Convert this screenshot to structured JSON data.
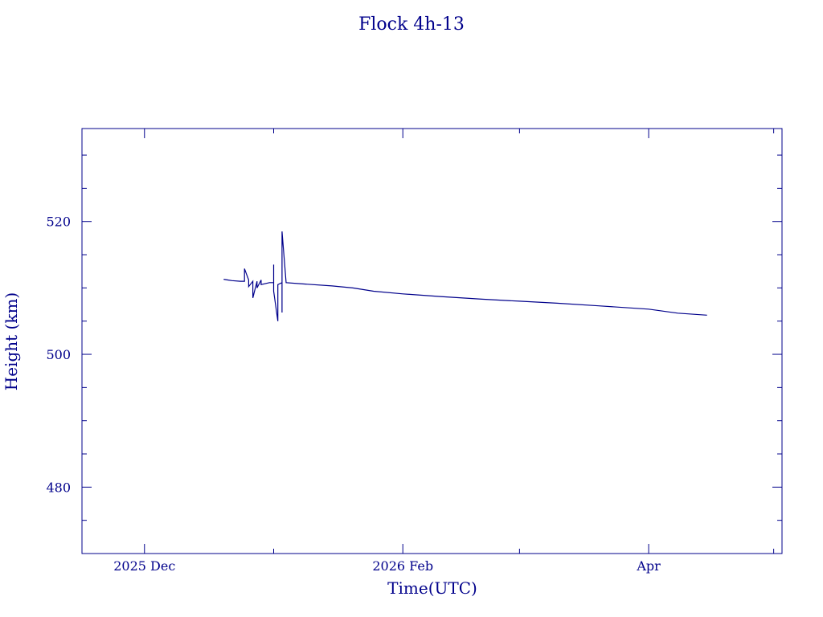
{
  "chart_data": {
    "type": "line",
    "title": "Flock 4h-13",
    "xlabel": "Time(UTC)",
    "ylabel": "Height (km)",
    "ylim": [
      470,
      534
    ],
    "xlim": [
      "2025-11-16",
      "2026-05-03"
    ],
    "x_ticks": [
      {
        "label": "2025 Dec",
        "date": "2025-12-01"
      },
      {
        "label": "2026 Feb",
        "date": "2026-02-01"
      },
      {
        "label": "Apr",
        "date": "2026-04-01"
      }
    ],
    "x_minor_dates": [
      "2025-12-01",
      "2026-01-01",
      "2026-02-01",
      "2026-03-01",
      "2026-04-01",
      "2026-05-01"
    ],
    "y_major_ticks": [
      480,
      500,
      520
    ],
    "y_minor_ticks": [
      475,
      480,
      485,
      490,
      495,
      500,
      505,
      510,
      515,
      520,
      525,
      530
    ],
    "colors": {
      "line": "#00008b",
      "axes": "#00008b",
      "text": "#00008b"
    },
    "series": [
      {
        "points": [
          [
            "2025-12-20",
            511.3
          ],
          [
            "2025-12-21",
            511.2
          ],
          [
            "2025-12-22",
            511.1
          ],
          [
            "2025-12-24",
            511.0
          ],
          [
            "2025-12-25",
            511.0
          ],
          [
            "2025-12-25",
            512.9
          ],
          [
            "2025-12-26",
            511.2
          ],
          [
            "2025-12-26",
            510.2
          ],
          [
            "2025-12-27",
            511.0
          ],
          [
            "2025-12-27",
            508.5
          ],
          [
            "2025-12-28",
            511.0
          ],
          [
            "2025-12-28",
            510.0
          ],
          [
            "2025-12-29",
            511.2
          ],
          [
            "2025-12-29",
            510.5
          ],
          [
            "2025-12-31",
            510.8
          ],
          [
            "2026-01-01",
            510.8
          ],
          [
            "2026-01-01",
            513.5
          ],
          [
            "2026-01-01",
            509.5
          ],
          [
            "2026-01-02",
            505.0
          ],
          [
            "2026-01-02",
            510.5
          ],
          [
            "2026-01-03",
            510.8
          ],
          [
            "2026-01-03",
            506.3
          ],
          [
            "2026-01-03",
            518.5
          ],
          [
            "2026-01-04",
            510.8
          ],
          [
            "2026-01-08",
            510.6
          ],
          [
            "2026-01-15",
            510.3
          ],
          [
            "2026-01-20",
            510.0
          ],
          [
            "2026-01-25",
            509.5
          ],
          [
            "2026-02-01",
            509.1
          ],
          [
            "2026-02-10",
            508.7
          ],
          [
            "2026-02-20",
            508.3
          ],
          [
            "2026-03-01",
            508.0
          ],
          [
            "2026-03-10",
            507.7
          ],
          [
            "2026-03-20",
            507.3
          ],
          [
            "2026-04-01",
            506.8
          ],
          [
            "2026-04-08",
            506.2
          ],
          [
            "2026-04-15",
            505.9
          ]
        ]
      }
    ]
  }
}
